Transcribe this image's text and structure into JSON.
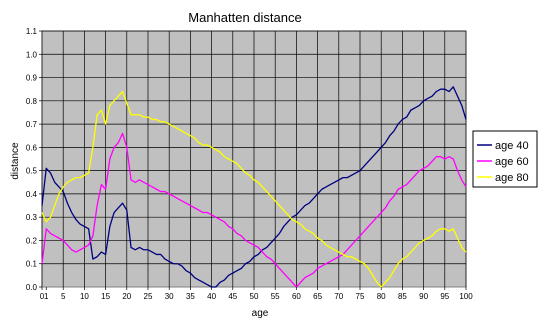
{
  "chart_data": {
    "type": "line",
    "title": "Manhatten distance",
    "xlabel": "age",
    "ylabel": "distance",
    "xlim": [
      0,
      100
    ],
    "ylim": [
      0,
      1.1
    ],
    "x_ticks": [
      "0",
      "1",
      "5",
      "10",
      "15",
      "20",
      "25",
      "30",
      "35",
      "40",
      "45",
      "50",
      "55",
      "60",
      "65",
      "70",
      "75",
      "80",
      "85",
      "90",
      "95",
      "100"
    ],
    "y_ticks": [
      "0.0",
      "0.1",
      "0.2",
      "0.3",
      "0.4",
      "0.5",
      "0.6",
      "0.7",
      "0.8",
      "0.9",
      "1.0",
      "1.1"
    ],
    "plot_background": "#c0c0c0",
    "grid": true,
    "legend_position": "right",
    "series": [
      {
        "name": "age 40",
        "color": "#000080",
        "points": [
          [
            0,
            0.35
          ],
          [
            1,
            0.51
          ],
          [
            2,
            0.49
          ],
          [
            3,
            0.45
          ],
          [
            4,
            0.43
          ],
          [
            5,
            0.41
          ],
          [
            6,
            0.36
          ],
          [
            7,
            0.32
          ],
          [
            8,
            0.29
          ],
          [
            9,
            0.27
          ],
          [
            10,
            0.26
          ],
          [
            11,
            0.25
          ],
          [
            12,
            0.12
          ],
          [
            13,
            0.13
          ],
          [
            14,
            0.15
          ],
          [
            15,
            0.14
          ],
          [
            16,
            0.26
          ],
          [
            17,
            0.32
          ],
          [
            18,
            0.34
          ],
          [
            19,
            0.36
          ],
          [
            20,
            0.33
          ],
          [
            21,
            0.17
          ],
          [
            22,
            0.16
          ],
          [
            23,
            0.17
          ],
          [
            24,
            0.16
          ],
          [
            25,
            0.16
          ],
          [
            26,
            0.15
          ],
          [
            27,
            0.14
          ],
          [
            28,
            0.14
          ],
          [
            29,
            0.12
          ],
          [
            30,
            0.11
          ],
          [
            31,
            0.1
          ],
          [
            32,
            0.1
          ],
          [
            33,
            0.09
          ],
          [
            34,
            0.07
          ],
          [
            35,
            0.06
          ],
          [
            36,
            0.04
          ],
          [
            37,
            0.03
          ],
          [
            38,
            0.02
          ],
          [
            39,
            0.01
          ],
          [
            40,
            0.0
          ],
          [
            41,
            0.0
          ],
          [
            42,
            0.02
          ],
          [
            43,
            0.03
          ],
          [
            44,
            0.05
          ],
          [
            45,
            0.06
          ],
          [
            46,
            0.07
          ],
          [
            47,
            0.08
          ],
          [
            48,
            0.1
          ],
          [
            49,
            0.11
          ],
          [
            50,
            0.13
          ],
          [
            51,
            0.14
          ],
          [
            52,
            0.16
          ],
          [
            53,
            0.17
          ],
          [
            54,
            0.19
          ],
          [
            55,
            0.21
          ],
          [
            56,
            0.23
          ],
          [
            57,
            0.26
          ],
          [
            58,
            0.28
          ],
          [
            59,
            0.3
          ],
          [
            60,
            0.31
          ],
          [
            61,
            0.33
          ],
          [
            62,
            0.35
          ],
          [
            63,
            0.36
          ],
          [
            64,
            0.38
          ],
          [
            65,
            0.4
          ],
          [
            66,
            0.42
          ],
          [
            67,
            0.43
          ],
          [
            68,
            0.44
          ],
          [
            69,
            0.45
          ],
          [
            70,
            0.46
          ],
          [
            71,
            0.47
          ],
          [
            72,
            0.47
          ],
          [
            73,
            0.48
          ],
          [
            74,
            0.49
          ],
          [
            75,
            0.5
          ],
          [
            76,
            0.52
          ],
          [
            77,
            0.54
          ],
          [
            78,
            0.56
          ],
          [
            79,
            0.58
          ],
          [
            80,
            0.6
          ],
          [
            81,
            0.62
          ],
          [
            82,
            0.65
          ],
          [
            83,
            0.67
          ],
          [
            84,
            0.7
          ],
          [
            85,
            0.72
          ],
          [
            86,
            0.73
          ],
          [
            87,
            0.76
          ],
          [
            88,
            0.77
          ],
          [
            89,
            0.78
          ],
          [
            90,
            0.8
          ],
          [
            91,
            0.81
          ],
          [
            92,
            0.82
          ],
          [
            93,
            0.84
          ],
          [
            94,
            0.85
          ],
          [
            95,
            0.85
          ],
          [
            96,
            0.84
          ],
          [
            97,
            0.86
          ],
          [
            98,
            0.82
          ],
          [
            99,
            0.78
          ],
          [
            100,
            0.72
          ]
        ]
      },
      {
        "name": "age 60",
        "color": "#ff00ff",
        "points": [
          [
            0,
            0.1
          ],
          [
            1,
            0.25
          ],
          [
            2,
            0.23
          ],
          [
            3,
            0.22
          ],
          [
            4,
            0.21
          ],
          [
            5,
            0.2
          ],
          [
            6,
            0.18
          ],
          [
            7,
            0.16
          ],
          [
            8,
            0.15
          ],
          [
            9,
            0.16
          ],
          [
            10,
            0.17
          ],
          [
            11,
            0.18
          ],
          [
            12,
            0.22
          ],
          [
            13,
            0.35
          ],
          [
            14,
            0.44
          ],
          [
            15,
            0.42
          ],
          [
            16,
            0.55
          ],
          [
            17,
            0.6
          ],
          [
            18,
            0.62
          ],
          [
            19,
            0.66
          ],
          [
            20,
            0.6
          ],
          [
            21,
            0.46
          ],
          [
            22,
            0.45
          ],
          [
            23,
            0.46
          ],
          [
            24,
            0.45
          ],
          [
            25,
            0.44
          ],
          [
            26,
            0.43
          ],
          [
            27,
            0.42
          ],
          [
            28,
            0.41
          ],
          [
            29,
            0.41
          ],
          [
            30,
            0.4
          ],
          [
            31,
            0.39
          ],
          [
            32,
            0.38
          ],
          [
            33,
            0.37
          ],
          [
            34,
            0.36
          ],
          [
            35,
            0.35
          ],
          [
            36,
            0.34
          ],
          [
            37,
            0.33
          ],
          [
            38,
            0.32
          ],
          [
            39,
            0.32
          ],
          [
            40,
            0.31
          ],
          [
            41,
            0.3
          ],
          [
            42,
            0.29
          ],
          [
            43,
            0.28
          ],
          [
            44,
            0.26
          ],
          [
            45,
            0.25
          ],
          [
            46,
            0.23
          ],
          [
            47,
            0.22
          ],
          [
            48,
            0.2
          ],
          [
            49,
            0.19
          ],
          [
            50,
            0.18
          ],
          [
            51,
            0.17
          ],
          [
            52,
            0.15
          ],
          [
            53,
            0.13
          ],
          [
            54,
            0.12
          ],
          [
            55,
            0.1
          ],
          [
            56,
            0.08
          ],
          [
            57,
            0.06
          ],
          [
            58,
            0.04
          ],
          [
            59,
            0.02
          ],
          [
            60,
            0.0
          ],
          [
            61,
            0.02
          ],
          [
            62,
            0.04
          ],
          [
            63,
            0.05
          ],
          [
            64,
            0.06
          ],
          [
            65,
            0.08
          ],
          [
            66,
            0.09
          ],
          [
            67,
            0.1
          ],
          [
            68,
            0.11
          ],
          [
            69,
            0.12
          ],
          [
            70,
            0.13
          ],
          [
            71,
            0.14
          ],
          [
            72,
            0.16
          ],
          [
            73,
            0.18
          ],
          [
            74,
            0.2
          ],
          [
            75,
            0.22
          ],
          [
            76,
            0.24
          ],
          [
            77,
            0.26
          ],
          [
            78,
            0.28
          ],
          [
            79,
            0.3
          ],
          [
            80,
            0.32
          ],
          [
            81,
            0.34
          ],
          [
            82,
            0.37
          ],
          [
            83,
            0.39
          ],
          [
            84,
            0.42
          ],
          [
            85,
            0.43
          ],
          [
            86,
            0.44
          ],
          [
            87,
            0.46
          ],
          [
            88,
            0.48
          ],
          [
            89,
            0.5
          ],
          [
            90,
            0.51
          ],
          [
            91,
            0.52
          ],
          [
            92,
            0.54
          ],
          [
            93,
            0.56
          ],
          [
            94,
            0.56
          ],
          [
            95,
            0.55
          ],
          [
            96,
            0.56
          ],
          [
            97,
            0.55
          ],
          [
            98,
            0.5
          ],
          [
            99,
            0.46
          ],
          [
            100,
            0.43
          ]
        ]
      },
      {
        "name": "age 80",
        "color": "#ffff00",
        "points": [
          [
            0,
            0.32
          ],
          [
            1,
            0.28
          ],
          [
            2,
            0.3
          ],
          [
            3,
            0.35
          ],
          [
            4,
            0.4
          ],
          [
            5,
            0.43
          ],
          [
            6,
            0.45
          ],
          [
            7,
            0.46
          ],
          [
            8,
            0.47
          ],
          [
            9,
            0.47
          ],
          [
            10,
            0.48
          ],
          [
            11,
            0.49
          ],
          [
            12,
            0.6
          ],
          [
            13,
            0.74
          ],
          [
            14,
            0.76
          ],
          [
            15,
            0.7
          ],
          [
            16,
            0.78
          ],
          [
            17,
            0.8
          ],
          [
            18,
            0.82
          ],
          [
            19,
            0.84
          ],
          [
            20,
            0.79
          ],
          [
            21,
            0.74
          ],
          [
            22,
            0.74
          ],
          [
            23,
            0.74
          ],
          [
            24,
            0.73
          ],
          [
            25,
            0.73
          ],
          [
            26,
            0.72
          ],
          [
            27,
            0.72
          ],
          [
            28,
            0.71
          ],
          [
            29,
            0.71
          ],
          [
            30,
            0.7
          ],
          [
            31,
            0.69
          ],
          [
            32,
            0.68
          ],
          [
            33,
            0.67
          ],
          [
            34,
            0.66
          ],
          [
            35,
            0.65
          ],
          [
            36,
            0.64
          ],
          [
            37,
            0.62
          ],
          [
            38,
            0.61
          ],
          [
            39,
            0.61
          ],
          [
            40,
            0.6
          ],
          [
            41,
            0.59
          ],
          [
            42,
            0.58
          ],
          [
            43,
            0.56
          ],
          [
            44,
            0.55
          ],
          [
            45,
            0.54
          ],
          [
            46,
            0.53
          ],
          [
            47,
            0.51
          ],
          [
            48,
            0.49
          ],
          [
            49,
            0.48
          ],
          [
            50,
            0.46
          ],
          [
            51,
            0.45
          ],
          [
            52,
            0.43
          ],
          [
            53,
            0.41
          ],
          [
            54,
            0.39
          ],
          [
            55,
            0.37
          ],
          [
            56,
            0.35
          ],
          [
            57,
            0.33
          ],
          [
            58,
            0.31
          ],
          [
            59,
            0.29
          ],
          [
            60,
            0.28
          ],
          [
            61,
            0.27
          ],
          [
            62,
            0.25
          ],
          [
            63,
            0.24
          ],
          [
            64,
            0.23
          ],
          [
            65,
            0.21
          ],
          [
            66,
            0.2
          ],
          [
            67,
            0.18
          ],
          [
            68,
            0.17
          ],
          [
            69,
            0.16
          ],
          [
            70,
            0.15
          ],
          [
            71,
            0.14
          ],
          [
            72,
            0.13
          ],
          [
            73,
            0.13
          ],
          [
            74,
            0.12
          ],
          [
            75,
            0.11
          ],
          [
            76,
            0.1
          ],
          [
            77,
            0.08
          ],
          [
            78,
            0.05
          ],
          [
            79,
            0.02
          ],
          [
            80,
            0.0
          ],
          [
            81,
            0.02
          ],
          [
            82,
            0.04
          ],
          [
            83,
            0.07
          ],
          [
            84,
            0.1
          ],
          [
            85,
            0.12
          ],
          [
            86,
            0.13
          ],
          [
            87,
            0.15
          ],
          [
            88,
            0.17
          ],
          [
            89,
            0.19
          ],
          [
            90,
            0.2
          ],
          [
            91,
            0.21
          ],
          [
            92,
            0.22
          ],
          [
            93,
            0.24
          ],
          [
            94,
            0.25
          ],
          [
            95,
            0.25
          ],
          [
            96,
            0.24
          ],
          [
            97,
            0.25
          ],
          [
            98,
            0.21
          ],
          [
            99,
            0.17
          ],
          [
            100,
            0.15
          ]
        ]
      }
    ]
  }
}
